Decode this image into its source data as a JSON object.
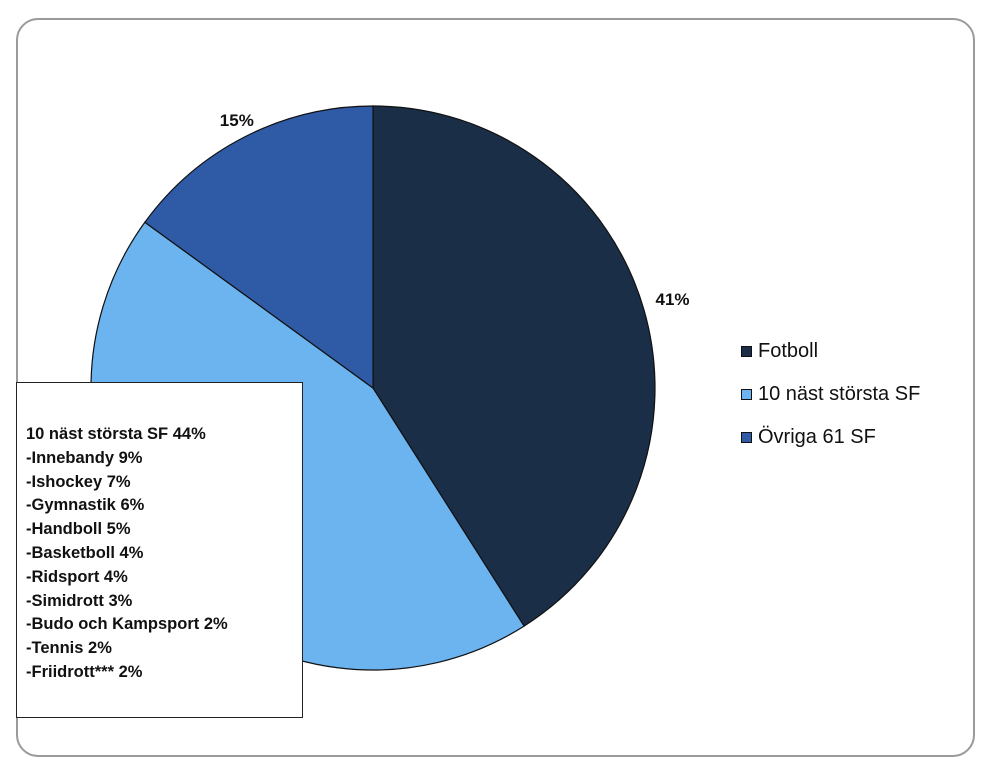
{
  "chart_data": {
    "type": "pie",
    "categories": [
      "Fotboll",
      "10 näst största SF",
      "Övriga 61 SF"
    ],
    "values": [
      41,
      44,
      15
    ],
    "value_labels": [
      "41%",
      "",
      "15%"
    ],
    "colors": [
      "#1a2e48",
      "#6bb4f0",
      "#2e5aa6"
    ],
    "start_angle_deg": 0,
    "direction": "clockwise",
    "legend_position": "right",
    "annotation_box": {
      "lines": [
        "10 näst största SF 44%",
        "-Innebandy 9%",
        "-Ishockey 7%",
        "-Gymnastik 6%",
        "-Handboll 5%",
        "-Basketboll 4%",
        "-Ridsport 4%",
        "-Simidrott 3%",
        "-Budo och Kampsport 2%",
        "-Tennis 2%",
        "-Friidrott*** 2%"
      ]
    }
  }
}
